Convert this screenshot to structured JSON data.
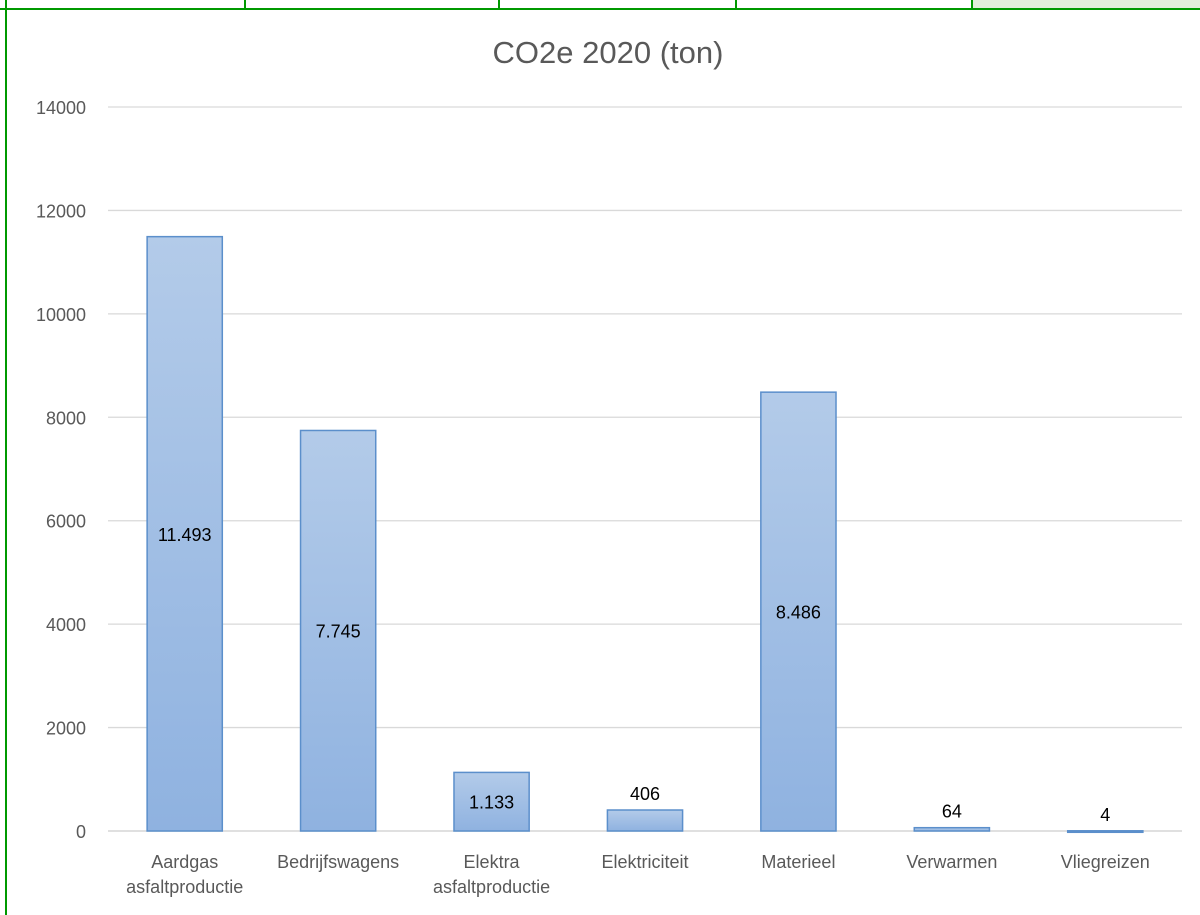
{
  "chart_data": {
    "type": "bar",
    "title": "CO2e 2020 (ton)",
    "xlabel": "",
    "ylabel": "",
    "ylim": [
      0,
      14000
    ],
    "yticks": [
      0,
      2000,
      4000,
      6000,
      8000,
      10000,
      12000,
      14000
    ],
    "grid": true,
    "legend": "none",
    "categories": [
      [
        "Aardgas",
        "asfaltproductie"
      ],
      [
        "Bedrijfswagens"
      ],
      [
        "Elektra",
        "asfaltproductie"
      ],
      [
        "Elektriciteit"
      ],
      [
        "Materieel"
      ],
      [
        "Verwarmen"
      ],
      [
        "Vliegreizen"
      ]
    ],
    "values": [
      11493,
      7745,
      1133,
      406,
      8486,
      64,
      4
    ],
    "data_labels": [
      "11.493",
      "7.745",
      "1.133",
      "406",
      "8.486",
      "64",
      "4"
    ],
    "colors": {
      "bar_top": "#b3cbe9",
      "bar_bottom": "#8fb2e0",
      "bar_stroke": "#5b8fcb",
      "grid": "#d9d9d9",
      "frame": "#009900",
      "header_fill": "#e2efda"
    }
  }
}
